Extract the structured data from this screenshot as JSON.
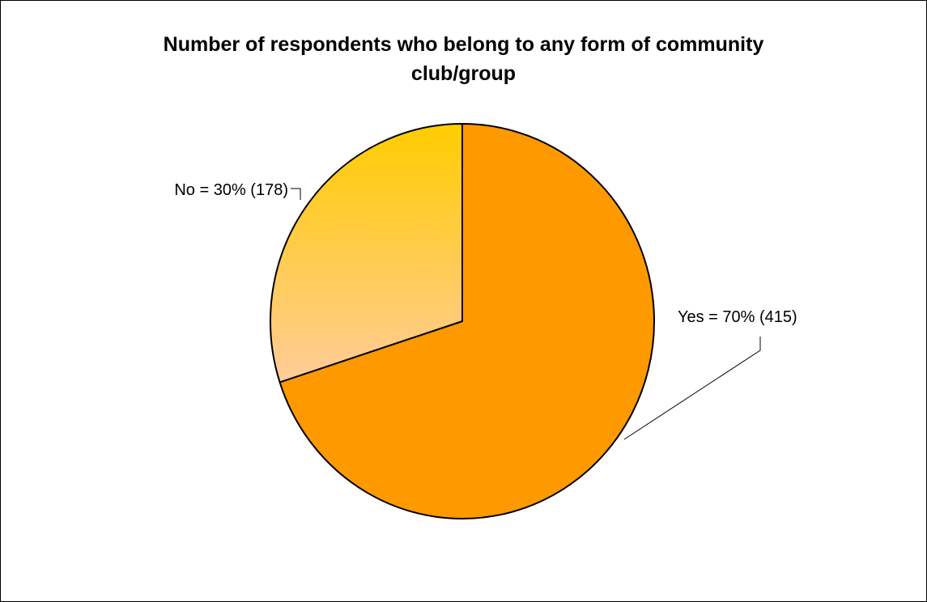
{
  "chart_data": {
    "type": "pie",
    "title": "Number of respondents who belong to any form of community club/group",
    "title_lines": [
      "Number of respondents who belong to any form of community",
      "club/group"
    ],
    "slices": [
      {
        "category": "Yes",
        "percent": 70,
        "count": 415,
        "label": "Yes = 70% (415)",
        "color": "#FF9900"
      },
      {
        "category": "No",
        "percent": 30,
        "count": 178,
        "label": "No = 30% (178)",
        "color_top": "#FFCC00",
        "color_bottom": "#FFCC99"
      }
    ],
    "legend": "none"
  }
}
